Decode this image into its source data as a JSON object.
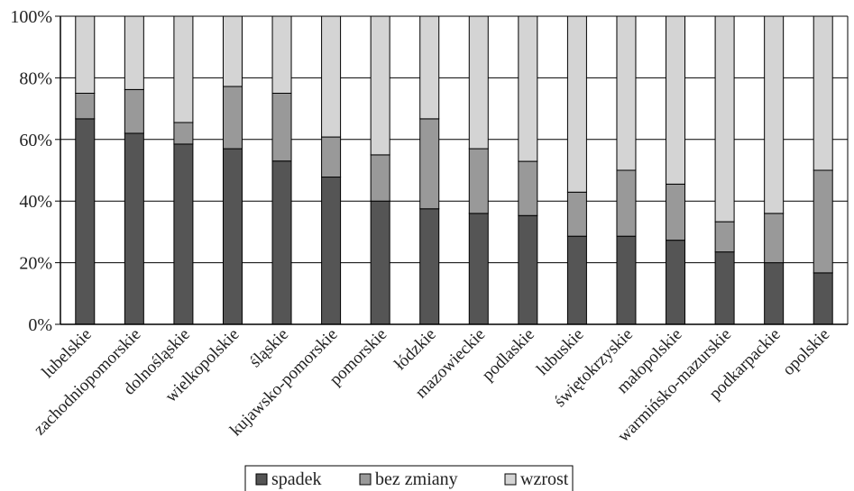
{
  "chart_data": {
    "type": "bar",
    "stacked": true,
    "percent": true,
    "title": "",
    "xlabel": "",
    "ylabel": "",
    "ylim": [
      0,
      100
    ],
    "yticks": [
      "0%",
      "20%",
      "40%",
      "60%",
      "80%",
      "100%"
    ],
    "grid": true,
    "legend_position": "bottom",
    "categories": [
      "lubelskie",
      "zachodniopomorskie",
      "dolnośląskie",
      "wielkopolskie",
      "śląskie",
      "kujawsko-pomorskie",
      "pomorskie",
      "łódzkie",
      "mazowieckie",
      "podlaskie",
      "lubuskie",
      "świętokrzyskie",
      "małopolskie",
      "warmińsko-mazurskie",
      "podkarpackie",
      "opolskie"
    ],
    "series": [
      {
        "name": "spadek",
        "color": "#555555",
        "values": [
          66.7,
          62,
          58.5,
          57,
          53,
          47.8,
          40,
          37.5,
          36,
          35.3,
          28.6,
          28.6,
          27.3,
          23.5,
          20,
          16.7
        ]
      },
      {
        "name": "bez zmiany",
        "color": "#999999",
        "values": [
          8.3,
          14.2,
          7,
          20.2,
          22,
          13,
          15,
          29.2,
          21,
          17.6,
          14.3,
          21.4,
          18.2,
          9.8,
          16,
          33.3
        ]
      },
      {
        "name": "wzrost",
        "color": "#d4d4d4",
        "values": [
          25,
          23.8,
          34.5,
          22.8,
          25,
          39.2,
          45,
          33.3,
          43,
          47.1,
          57.1,
          50,
          54.5,
          66.7,
          64,
          50
        ]
      }
    ]
  }
}
